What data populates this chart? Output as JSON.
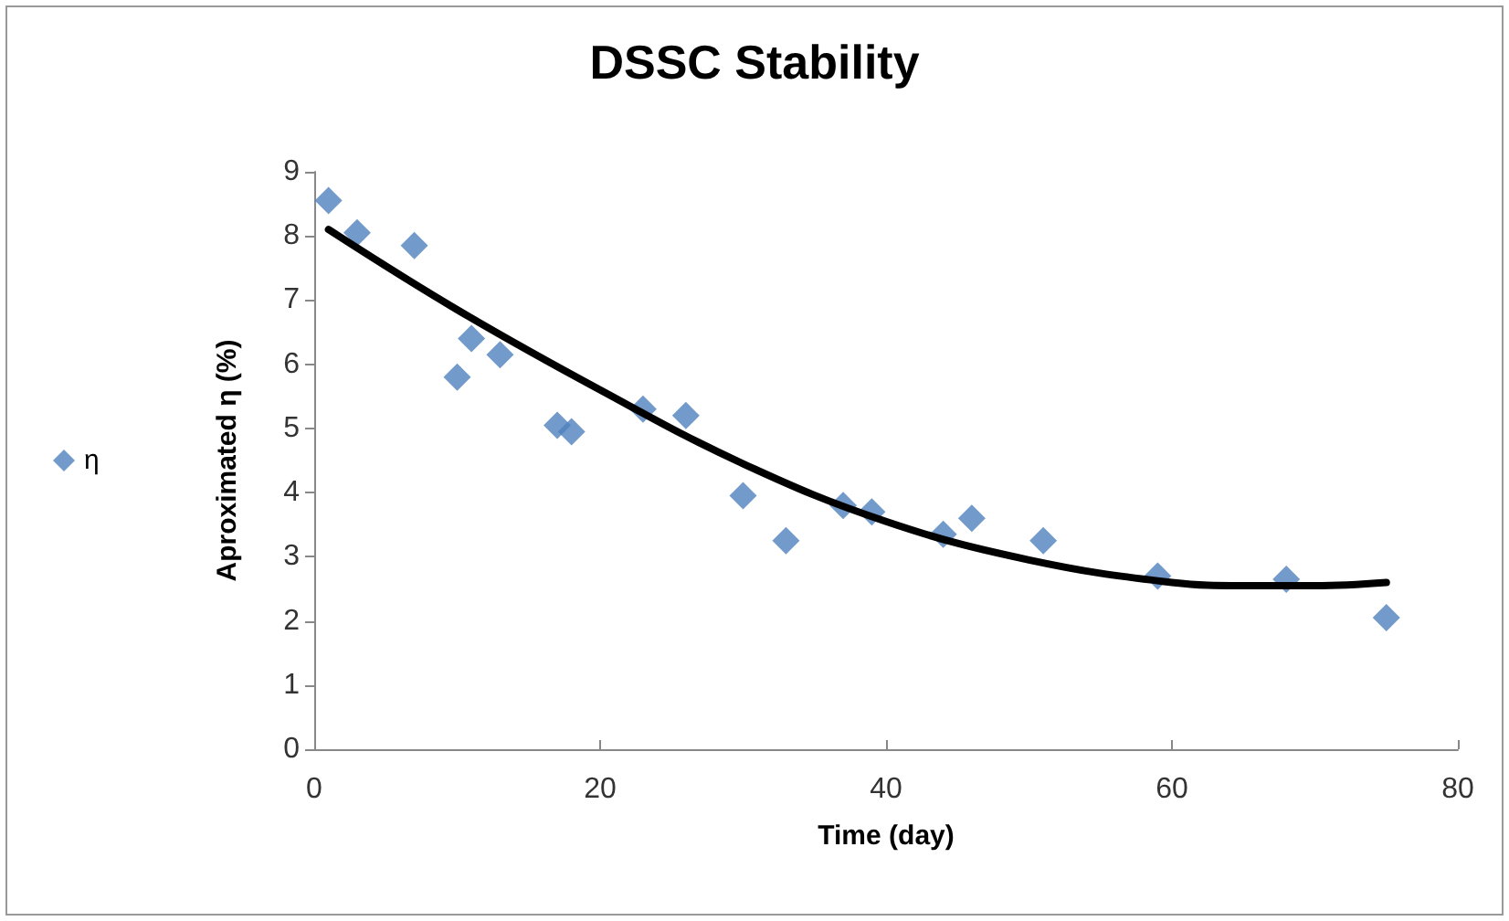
{
  "chart_data": {
    "type": "scatter",
    "title": "DSSC Stability",
    "xlabel": "Time (day)",
    "ylabel": "Aproximated η (%)",
    "xlim": [
      0,
      80
    ],
    "xticks": [
      0,
      20,
      40,
      60,
      80
    ],
    "ylim": [
      0,
      9
    ],
    "yticks": [
      0,
      1,
      2,
      3,
      4,
      5,
      6,
      7,
      8,
      9
    ],
    "grid": false,
    "legend": "left",
    "marker": "diamond",
    "series": [
      {
        "name": "η",
        "color": "#4f81bd",
        "x": [
          1,
          3,
          7,
          10,
          11,
          13,
          17,
          18,
          23,
          26,
          30,
          33,
          37,
          39,
          44,
          46,
          51,
          59,
          68,
          75
        ],
        "values": [
          8.55,
          8.05,
          7.85,
          5.8,
          6.4,
          6.15,
          5.05,
          4.95,
          5.3,
          5.2,
          3.95,
          3.25,
          3.8,
          3.7,
          3.35,
          3.6,
          3.25,
          2.7,
          2.65,
          2.05
        ]
      },
      {
        "type": "line",
        "color": "#000000",
        "marker": "none",
        "line_style": "solid",
        "x": [
          1,
          10,
          20,
          30,
          40,
          50,
          60,
          65,
          70,
          75
        ],
        "values": [
          8.1,
          6.85,
          5.6,
          4.45,
          3.55,
          2.95,
          2.6,
          2.55,
          2.55,
          2.6
        ]
      }
    ]
  }
}
